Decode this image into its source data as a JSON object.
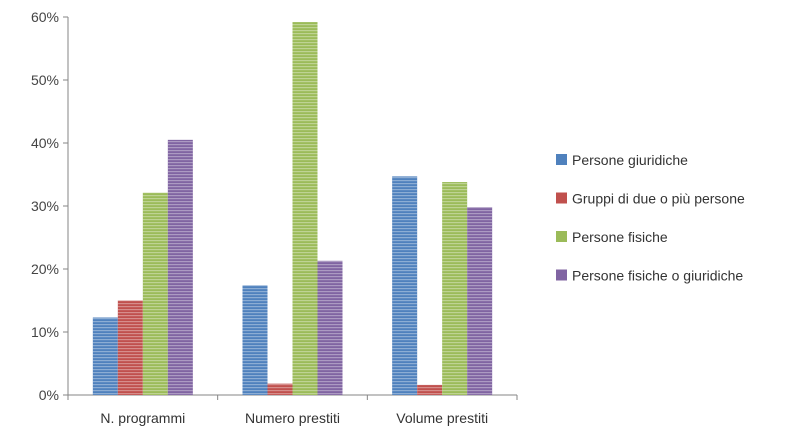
{
  "chart_data": {
    "type": "bar",
    "categories": [
      "N. programmi",
      "Numero prestiti",
      "Volume prestiti"
    ],
    "ylim": [
      0,
      60
    ],
    "yticks": [
      0,
      10,
      20,
      30,
      40,
      50,
      60
    ],
    "ytick_labels": [
      "0%",
      "10%",
      "20%",
      "30%",
      "40%",
      "50%",
      "60%"
    ],
    "grid": false,
    "legend_position": "right",
    "bar_style": "horizontal-stripes",
    "series": [
      {
        "name": "Persone giuridiche",
        "color": "#4f81bd",
        "values": [
          12.3,
          17.4,
          34.7
        ]
      },
      {
        "name": "Gruppi di due o più persone",
        "color": "#c0504d",
        "values": [
          15.0,
          1.8,
          1.6
        ]
      },
      {
        "name": "Persone fisiche",
        "color": "#9bbb59",
        "values": [
          32.1,
          59.2,
          33.8
        ]
      },
      {
        "name": "Persone fisiche o giuridiche",
        "color": "#8064a2",
        "values": [
          40.5,
          21.3,
          29.8
        ]
      }
    ]
  }
}
